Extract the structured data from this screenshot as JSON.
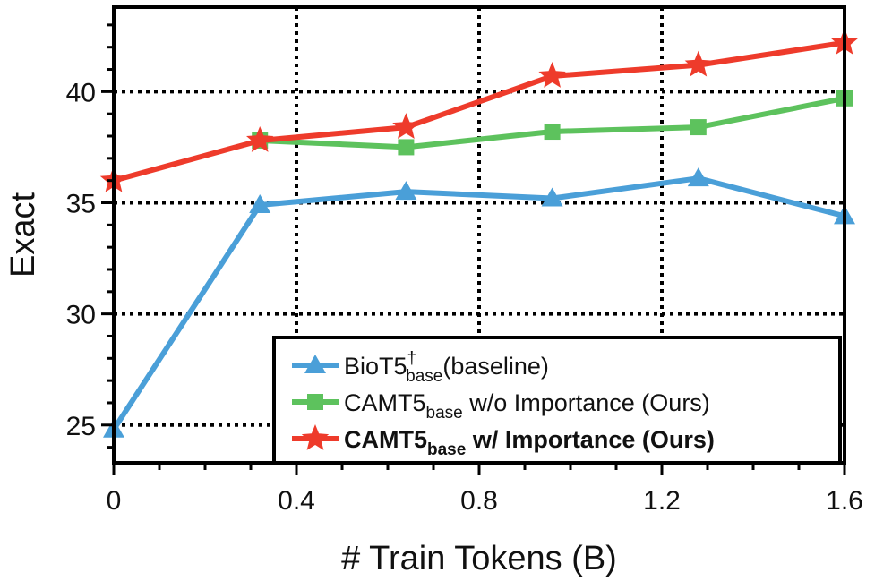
{
  "chart_data": {
    "type": "line",
    "xlabel": "# Train Tokens (B)",
    "ylabel": "Exact",
    "xlim": [
      0,
      1.6
    ],
    "ylim": [
      23.3,
      43.8
    ],
    "xticks": [
      0,
      0.4,
      0.8,
      1.2,
      1.6
    ],
    "xtick_labels": [
      "0",
      "0.4",
      "0.8",
      "1.2",
      "1.6"
    ],
    "yticks": [
      25,
      30,
      35,
      40
    ],
    "ytick_labels": [
      "25",
      "30",
      "35",
      "40"
    ],
    "grid": "dotted",
    "legend_position": "bottom-right",
    "x": [
      0,
      0.32,
      0.64,
      0.96,
      1.28,
      1.6
    ],
    "series": [
      {
        "name": "BioT5",
        "legend_main": "BioT5",
        "legend_sup": "†",
        "legend_sub": "base",
        "legend_rest": "(baseline)",
        "bold": false,
        "color": "#4a9fd8",
        "marker": "triangle",
        "x": [
          0,
          0.32,
          0.64,
          0.96,
          1.28,
          1.6
        ],
        "values": [
          24.8,
          34.9,
          35.5,
          35.2,
          36.1,
          34.4
        ]
      },
      {
        "name": "CAMT5 w/o Importance",
        "legend_main": "CAMT5",
        "legend_sub": "base",
        "legend_rest": " w/o Importance (Ours)",
        "bold": false,
        "color": "#5dc25d",
        "marker": "square",
        "x": [
          0.32,
          0.64,
          0.96,
          1.28,
          1.6
        ],
        "values": [
          37.8,
          37.5,
          38.2,
          38.4,
          39.7
        ]
      },
      {
        "name": "CAMT5 w/ Importance",
        "legend_main": "CAMT5",
        "legend_sub": "base",
        "legend_rest": " w/ Importance (Ours)",
        "bold": true,
        "color": "#ee3b2b",
        "marker": "star",
        "x": [
          0,
          0.32,
          0.64,
          0.96,
          1.28,
          1.6
        ],
        "values": [
          36.0,
          37.8,
          38.4,
          40.7,
          41.2,
          42.2
        ]
      }
    ]
  }
}
